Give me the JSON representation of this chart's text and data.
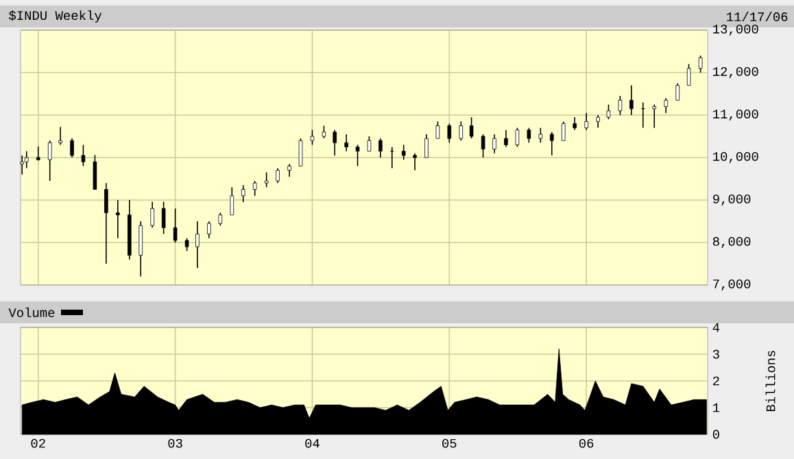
{
  "chart_data": [
    {
      "type": "candlestick",
      "title": "$INDU Weekly",
      "color": "#000000",
      "grid": true,
      "tick_labels": "y",
      "annotations": [
        "11/17/06"
      ],
      "x": [
        "2001-11-19",
        "2001-12-01",
        "2002-01-01",
        "2002-02-01",
        "2002-03-01",
        "2002-04-01",
        "2002-05-01",
        "2002-06-01",
        "2002-07-01",
        "2002-08-01",
        "2002-09-01",
        "2002-10-01",
        "2002-11-01",
        "2002-12-01",
        "2003-01-01",
        "2003-02-01",
        "2003-03-01",
        "2003-04-01",
        "2003-05-01",
        "2003-06-01",
        "2003-07-01",
        "2003-08-01",
        "2003-09-01",
        "2003-10-01",
        "2003-11-01",
        "2003-12-01",
        "2004-01-01",
        "2004-02-01",
        "2004-03-01",
        "2004-04-01",
        "2004-05-01",
        "2004-06-01",
        "2004-07-01",
        "2004-08-01",
        "2004-09-01",
        "2004-10-01",
        "2004-11-01",
        "2004-12-01",
        "2005-01-01",
        "2005-02-01",
        "2005-03-01",
        "2005-04-01",
        "2005-05-01",
        "2005-06-01",
        "2005-07-01",
        "2005-08-01",
        "2005-09-01",
        "2005-10-01",
        "2005-11-01",
        "2005-12-01",
        "2006-01-01",
        "2006-02-01",
        "2006-03-01",
        "2006-04-01",
        "2006-05-01",
        "2006-06-01",
        "2006-07-01",
        "2006-08-01",
        "2006-09-01",
        "2006-10-01",
        "2006-11-01"
      ],
      "ohlc": [
        [
          9850,
          10050,
          9600,
          9900
        ],
        [
          9900,
          10150,
          9750,
          10000
        ],
        [
          10000,
          10260,
          9930,
          9950
        ],
        [
          9950,
          10400,
          9450,
          10350
        ],
        [
          10350,
          10720,
          10300,
          10400
        ],
        [
          10400,
          10450,
          10000,
          10050
        ],
        [
          10050,
          10300,
          9800,
          9900
        ],
        [
          9900,
          10060,
          9250,
          9250
        ],
        [
          9250,
          9400,
          7500,
          8700
        ],
        [
          8700,
          9000,
          8100,
          8650
        ],
        [
          8650,
          9000,
          7600,
          7700
        ],
        [
          7700,
          8500,
          7200,
          8400
        ],
        [
          8400,
          8960,
          8350,
          8800
        ],
        [
          8800,
          8960,
          8200,
          8350
        ],
        [
          8350,
          8800,
          8000,
          8050
        ],
        [
          8050,
          8100,
          7800,
          7900
        ],
        [
          7900,
          8500,
          7400,
          8200
        ],
        [
          8200,
          8500,
          8100,
          8450
        ],
        [
          8450,
          8700,
          8400,
          8650
        ],
        [
          8650,
          9300,
          8650,
          9100
        ],
        [
          9100,
          9350,
          8950,
          9250
        ],
        [
          9250,
          9450,
          9100,
          9400
        ],
        [
          9400,
          9650,
          9300,
          9450
        ],
        [
          9450,
          9750,
          9400,
          9700
        ],
        [
          9700,
          9850,
          9550,
          9800
        ],
        [
          9800,
          10450,
          9800,
          10400
        ],
        [
          10400,
          10650,
          10300,
          10500
        ],
        [
          10500,
          10750,
          10450,
          10600
        ],
        [
          10600,
          10650,
          10050,
          10350
        ],
        [
          10350,
          10550,
          10150,
          10250
        ],
        [
          10250,
          10300,
          9800,
          10150
        ],
        [
          10150,
          10500,
          10150,
          10400
        ],
        [
          10400,
          10450,
          10000,
          10150
        ],
        [
          10150,
          10250,
          9750,
          10150
        ],
        [
          10150,
          10300,
          9950,
          10050
        ],
        [
          10050,
          10100,
          9700,
          10000
        ],
        [
          10000,
          10550,
          10000,
          10450
        ],
        [
          10450,
          10850,
          10450,
          10750
        ],
        [
          10750,
          10800,
          10350,
          10450
        ],
        [
          10450,
          10850,
          10400,
          10750
        ],
        [
          10750,
          10950,
          10450,
          10500
        ],
        [
          10500,
          10550,
          10000,
          10200
        ],
        [
          10200,
          10550,
          10100,
          10450
        ],
        [
          10450,
          10650,
          10250,
          10300
        ],
        [
          10300,
          10700,
          10250,
          10650
        ],
        [
          10650,
          10700,
          10350,
          10450
        ],
        [
          10450,
          10700,
          10350,
          10550
        ],
        [
          10550,
          10600,
          10050,
          10400
        ],
        [
          10400,
          10850,
          10400,
          10800
        ],
        [
          10800,
          10950,
          10650,
          10700
        ],
        [
          10700,
          11050,
          10650,
          10850
        ],
        [
          10850,
          11000,
          10700,
          10950
        ],
        [
          10950,
          11250,
          10900,
          11100
        ],
        [
          11100,
          11450,
          11000,
          11350
        ],
        [
          11350,
          11700,
          11000,
          11150
        ],
        [
          11150,
          11300,
          10700,
          11150
        ],
        [
          11150,
          11250,
          10700,
          11200
        ],
        [
          11200,
          11400,
          11050,
          11350
        ],
        [
          11350,
          11750,
          11350,
          11700
        ],
        [
          11700,
          12200,
          11700,
          12100
        ],
        [
          12100,
          12400,
          12000,
          12350
        ]
      ],
      "xlim": [
        "2001-11-15",
        "2006-11-20"
      ],
      "xticks": [
        {
          "value": "2002-01-01",
          "label": null
        },
        {
          "value": "2003-01-01",
          "label": null
        },
        {
          "value": "2004-01-01",
          "label": null
        },
        {
          "value": "2005-01-01",
          "label": null
        },
        {
          "value": "2006-01-01",
          "label": null
        }
      ],
      "ylim": [
        7000,
        13000
      ],
      "yticks": [
        {
          "value": 7000,
          "label": "7,000"
        },
        {
          "value": 8000,
          "label": "8,000"
        },
        {
          "value": 9000,
          "label": "9,000"
        },
        {
          "value": 10000,
          "label": "10,000"
        },
        {
          "value": 11000,
          "label": "11,000"
        },
        {
          "value": 12000,
          "label": "12,000"
        },
        {
          "value": 13000,
          "label": "13,000"
        }
      ]
    },
    {
      "type": "area",
      "legend": "top left",
      "grid": true,
      "ylabel": "Billions",
      "series": [
        {
          "name": "Volume",
          "color": "#000000",
          "x": [
            "2001-11-19",
            "2001-12-15",
            "2002-01-15",
            "2002-02-15",
            "2002-03-15",
            "2002-04-15",
            "2002-05-15",
            "2002-06-15",
            "2002-07-10",
            "2002-07-24",
            "2002-08-10",
            "2002-09-15",
            "2002-10-10",
            "2002-11-15",
            "2002-12-15",
            "2003-01-01",
            "2003-01-10",
            "2003-02-01",
            "2003-03-15",
            "2003-04-15",
            "2003-05-15",
            "2003-06-15",
            "2003-07-15",
            "2003-08-15",
            "2003-09-15",
            "2003-10-15",
            "2003-11-15",
            "2003-12-10",
            "2003-12-24",
            "2004-01-10",
            "2004-02-15",
            "2004-03-15",
            "2004-04-15",
            "2004-05-15",
            "2004-06-15",
            "2004-07-15",
            "2004-08-15",
            "2004-09-15",
            "2004-10-15",
            "2004-11-20",
            "2004-12-10",
            "2004-12-28",
            "2005-01-15",
            "2005-02-15",
            "2005-03-15",
            "2005-04-15",
            "2005-05-15",
            "2005-06-15",
            "2005-07-15",
            "2005-08-15",
            "2005-09-20",
            "2005-10-10",
            "2005-10-20",
            "2005-10-30",
            "2005-11-15",
            "2005-12-15",
            "2005-12-28",
            "2006-01-10",
            "2006-01-25",
            "2006-02-15",
            "2006-03-15",
            "2006-04-15",
            "2006-05-01",
            "2006-06-01",
            "2006-07-01",
            "2006-07-15",
            "2006-08-15",
            "2006-09-15",
            "2006-10-15",
            "2006-11-17"
          ],
          "values": [
            1.1,
            1.2,
            1.3,
            1.2,
            1.3,
            1.4,
            1.1,
            1.4,
            1.6,
            2.3,
            1.5,
            1.4,
            1.8,
            1.4,
            1.2,
            1.1,
            0.9,
            1.3,
            1.5,
            1.2,
            1.2,
            1.3,
            1.2,
            1.0,
            1.1,
            1.0,
            1.1,
            1.1,
            0.6,
            1.1,
            1.1,
            1.1,
            1.0,
            1.0,
            1.0,
            0.9,
            1.1,
            0.9,
            1.2,
            1.6,
            1.8,
            0.9,
            1.2,
            1.3,
            1.4,
            1.3,
            1.1,
            1.1,
            1.1,
            1.1,
            1.5,
            1.2,
            3.2,
            1.5,
            1.3,
            1.1,
            0.9,
            1.4,
            2.0,
            1.4,
            1.3,
            1.1,
            1.9,
            1.8,
            1.2,
            1.7,
            1.1,
            1.2,
            1.3,
            1.3
          ]
        }
      ],
      "xlim": [
        "2001-11-15",
        "2006-11-20"
      ],
      "xticks": [
        {
          "value": "2002-01-01",
          "label": "02"
        },
        {
          "value": "2003-01-01",
          "label": "03"
        },
        {
          "value": "2004-01-01",
          "label": "04"
        },
        {
          "value": "2005-01-01",
          "label": "05"
        },
        {
          "value": "2006-01-01",
          "label": "06"
        }
      ],
      "ylim": [
        0,
        4
      ],
      "yticks": [
        0,
        1,
        2,
        3,
        4
      ]
    }
  ]
}
